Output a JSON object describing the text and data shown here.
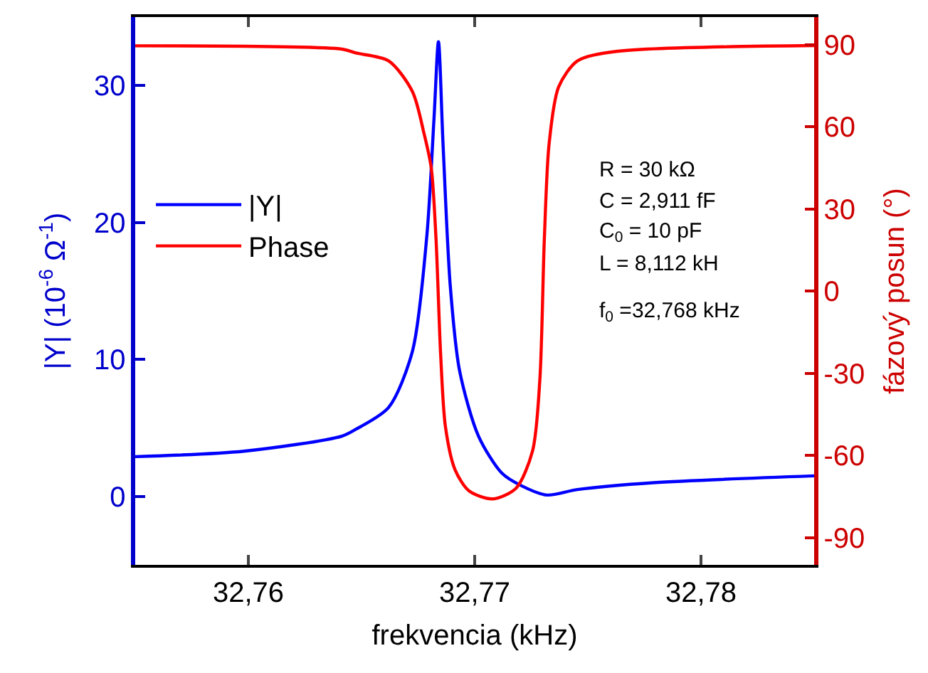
{
  "chart_data": {
    "type": "line",
    "xlabel": "frekvencia (kHz)",
    "ylabel": "|Y| (10$^{-6}$ Ω$^{-1}$)",
    "y2label": "fázový posun (°)",
    "xlim": [
      32.755,
      32.785
    ],
    "xticks": [
      {
        "value": 32.76,
        "label": "32,76"
      },
      {
        "value": 32.77,
        "label": "32,77"
      },
      {
        "value": 32.78,
        "label": "32,78"
      }
    ],
    "ylim": [
      -5,
      35
    ],
    "yticks": [
      0,
      10,
      20,
      30
    ],
    "y2lim": [
      -100,
      100
    ],
    "y2ticks": [
      -90,
      -60,
      -30,
      0,
      30,
      60,
      90
    ],
    "legend": "left",
    "marker": "none",
    "line_style": "solid",
    "series": [
      {
        "name": "|Y|",
        "color": "#0000ff",
        "x": [
          32.755,
          32.7598,
          32.76413,
          32.76475,
          32.7662,
          32.76725,
          32.76788,
          32.7682,
          32.7684,
          32.7686,
          32.76892,
          32.76933,
          32.77017,
          32.7712,
          32.77204,
          32.77319,
          32.77454,
          32.7779,
          32.785
        ],
        "values": [
          2.9,
          3.3,
          4.4,
          4.9,
          6.5,
          10.6,
          18.9,
          27.5,
          33.2,
          25.8,
          15.4,
          9.2,
          4.4,
          1.7,
          0.8,
          0.1,
          0.5,
          1.0,
          1.5
        ]
      },
      {
        "name": "Phase",
        "color": "#ff0000",
        "axis": "y2",
        "x": [
          32.755,
          32.76413,
          32.76475,
          32.7662,
          32.76725,
          32.76777,
          32.76808,
          32.76829,
          32.7685,
          32.76871,
          32.76913,
          32.76975,
          32.7708,
          32.77183,
          32.77256,
          32.77288,
          32.77308,
          32.77329,
          32.77371,
          32.77454,
          32.7762,
          32.785
        ],
        "values": [
          89.5,
          88.3,
          86.9,
          84,
          72.8,
          57.2,
          45,
          19.3,
          -23.8,
          -49.7,
          -65.2,
          -73,
          -75.9,
          -72,
          -58.3,
          -32.4,
          19.3,
          53.8,
          74.5,
          84,
          87.4,
          89.6
        ]
      }
    ],
    "annotations": [
      "R = 30 kΩ",
      "C = 2,911 fF",
      "C$_{0}$ = 10 pF",
      "L = 8,112 kH",
      "f$_{0}$ =32,768 kHz"
    ]
  }
}
